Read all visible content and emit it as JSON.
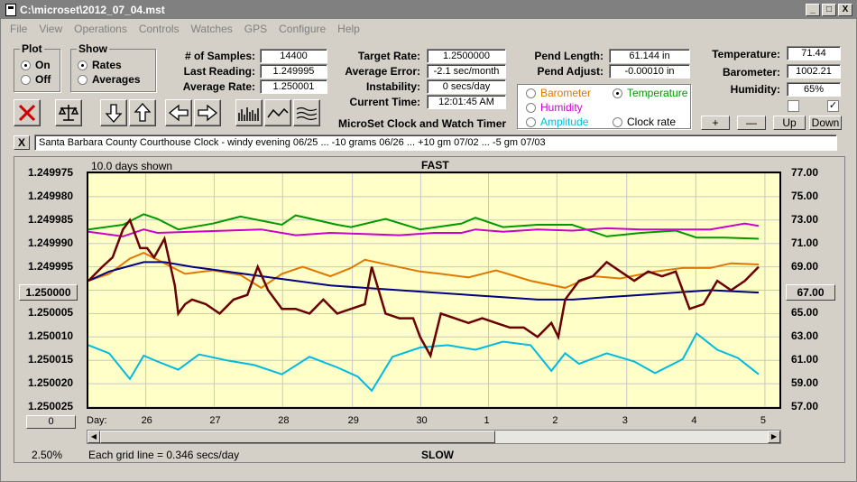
{
  "window": {
    "title": "C:\\microset\\2012_07_04.mst",
    "min": "_",
    "max": "□",
    "close": "X"
  },
  "menu": [
    "File",
    "View",
    "Operations",
    "Controls",
    "Watches",
    "GPS",
    "Configure",
    "Help"
  ],
  "plot_group": {
    "title": "Plot",
    "on": "On",
    "off": "Off",
    "selected": "On"
  },
  "show_group": {
    "title": "Show",
    "rates": "Rates",
    "averages": "Averages",
    "selected": "Rates"
  },
  "stats": {
    "samples_label": "# of Samples:",
    "samples": "14400",
    "last_label": "Last Reading:",
    "last": "1.249995",
    "avg_label": "Average Rate:",
    "avg": "1.250001"
  },
  "rates": {
    "target_label": "Target Rate:",
    "target": "1.2500000",
    "error_label": "Average Error:",
    "error": "-2.1 sec/month",
    "instab_label": "Instability:",
    "instab": "0 secs/day",
    "time_label": "Current Time:",
    "time": "12:01:45 AM"
  },
  "pend": {
    "length_label": "Pend Length:",
    "length": "61.144 in",
    "adjust_label": "Pend Adjust:",
    "adjust": "-0.00010 in"
  },
  "sensors": {
    "temp_label": "Temperature:",
    "temp": "71.44",
    "baro_label": "Barometer:",
    "baro": "1002.21",
    "hum_label": "Humidity:",
    "hum": "65%"
  },
  "overlay": {
    "barometer": "Barometer",
    "temperature": "Temperature",
    "humidity": "Humidity",
    "amplitude": "Amplitude",
    "clockrate": "Clock rate",
    "selected": "Temperature",
    "colors": {
      "barometer": "#e07800",
      "temperature": "#009900",
      "humidity": "#cc00cc",
      "amplitude": "#00bbdd",
      "clockrate": "#000000"
    }
  },
  "app_title": "MicroSet Clock and Watch Timer",
  "scale_buttons": {
    "plus": "+",
    "minus": "—",
    "up": "Up",
    "down": "Down"
  },
  "note_close": "X",
  "note": "Santa Barbara County Courthouse Clock -  windy evening 06/25 ... -10 grams 06/26 ... +10 gm 07/02 ... -5 gm 07/03",
  "chart_header": {
    "days_shown": "10.0 days shown",
    "top": "FAST",
    "bottom": "SLOW"
  },
  "left_axis_button": "1.250000",
  "right_axis_button": "67.00",
  "zero_button": "0",
  "day_label": "Day:",
  "percent": "2.50%",
  "grid_note": "Each grid line = 0.346 secs/day",
  "chart_data": {
    "type": "line",
    "title": "",
    "x_ticks": [
      "26",
      "27",
      "28",
      "29",
      "30",
      "1",
      "2",
      "3",
      "4",
      "5"
    ],
    "x_tick_days": [
      0.83,
      1.82,
      2.81,
      3.82,
      4.81,
      5.79,
      6.78,
      7.79,
      8.79,
      9.79
    ],
    "xlim": [
      0,
      10
    ],
    "y_left_ticks": [
      "1.249975",
      "1.249980",
      "1.249985",
      "1.249990",
      "1.249995",
      "1.250000",
      "1.250005",
      "1.250010",
      "1.250015",
      "1.250020",
      "1.250025"
    ],
    "y_left_lim": [
      1.249975,
      1.250025
    ],
    "y_left_inverted": true,
    "y_right_ticks": [
      "77.00",
      "75.00",
      "73.00",
      "71.00",
      "69.00",
      "67.00",
      "65.00",
      "63.00",
      "61.00",
      "59.00",
      "57.00"
    ],
    "y_right_lim": [
      57,
      77
    ],
    "grid": true,
    "series": [
      {
        "name": "Temperature",
        "color": "#009900",
        "axis": "right",
        "x": [
          0,
          0.5,
          0.8,
          1.0,
          1.3,
          1.8,
          2.2,
          2.8,
          3.0,
          3.6,
          3.8,
          4.3,
          4.8,
          5.4,
          5.6,
          6.0,
          6.5,
          7.0,
          7.5,
          8.0,
          8.5,
          8.8,
          9.2,
          9.7
        ],
        "y": [
          72.2,
          72.6,
          73.5,
          73.1,
          72.2,
          72.7,
          73.3,
          72.6,
          73.4,
          72.6,
          72.4,
          73.1,
          72.2,
          72.7,
          73.2,
          72.4,
          72.6,
          72.6,
          71.6,
          71.9,
          72.1,
          71.5,
          71.5,
          71.4
        ]
      },
      {
        "name": "Humidity",
        "color": "#cc00cc",
        "axis": "right",
        "x": [
          0,
          0.5,
          0.8,
          1.0,
          1.5,
          2.0,
          2.5,
          3.0,
          3.5,
          4.0,
          4.5,
          5.0,
          5.4,
          5.6,
          6.0,
          6.5,
          7.0,
          7.5,
          8.0,
          8.5,
          9.0,
          9.5,
          9.7
        ],
        "y": [
          72.0,
          71.6,
          72.2,
          71.9,
          72.0,
          72.1,
          72.2,
          71.7,
          71.9,
          71.8,
          71.7,
          71.9,
          71.9,
          72.2,
          72.0,
          72.2,
          72.1,
          72.3,
          72.2,
          72.2,
          72.2,
          72.7,
          72.5
        ]
      },
      {
        "name": "Barometer",
        "color": "#e07800",
        "axis": "right",
        "x": [
          0,
          0.3,
          0.6,
          0.8,
          1.0,
          1.4,
          1.8,
          2.2,
          2.5,
          2.8,
          3.1,
          3.5,
          3.8,
          4.0,
          4.4,
          4.8,
          5.1,
          5.5,
          5.9,
          6.4,
          6.9,
          7.3,
          7.7,
          8.2,
          8.6,
          9.0,
          9.3,
          9.7
        ],
        "y": [
          67.8,
          68.4,
          69.7,
          70.2,
          69.6,
          68.4,
          68.7,
          68.3,
          67.2,
          68.4,
          69.0,
          68.2,
          68.9,
          69.6,
          69.1,
          68.6,
          68.4,
          68.1,
          68.7,
          67.8,
          67.2,
          68.2,
          68.0,
          68.6,
          68.9,
          68.9,
          69.3,
          69.2
        ]
      },
      {
        "name": "Amplitude",
        "color": "#00bbdd",
        "axis": "right",
        "x": [
          0,
          0.3,
          0.6,
          0.8,
          1.0,
          1.3,
          1.6,
          2.0,
          2.4,
          2.8,
          3.2,
          3.6,
          3.9,
          4.1,
          4.4,
          4.8,
          5.2,
          5.6,
          6.0,
          6.4,
          6.7,
          6.9,
          7.1,
          7.5,
          7.9,
          8.2,
          8.6,
          8.8,
          9.1,
          9.4,
          9.7
        ],
        "y": [
          62.3,
          61.6,
          59.4,
          61.4,
          60.9,
          60.2,
          61.5,
          61.0,
          60.6,
          59.8,
          61.3,
          60.4,
          59.6,
          58.4,
          61.3,
          62.1,
          62.3,
          61.9,
          62.6,
          62.3,
          60.1,
          61.6,
          60.7,
          61.6,
          60.9,
          59.9,
          61.1,
          63.3,
          61.9,
          61.2,
          59.8
        ]
      },
      {
        "name": "Average",
        "color": "#000080",
        "axis": "left",
        "x": [
          0,
          0.3,
          0.8,
          1.1,
          1.5,
          2.0,
          2.5,
          3.0,
          3.5,
          4.0,
          4.5,
          5.0,
          5.5,
          6.0,
          6.5,
          7.0,
          7.5,
          8.0,
          8.5,
          9.0,
          9.7
        ],
        "y": [
          1.249998,
          1.249996,
          1.249994,
          1.249994,
          1.249995,
          1.249996,
          1.249997,
          1.249998,
          1.249999,
          1.2499995,
          1.25,
          1.2500005,
          1.250001,
          1.2500015,
          1.250002,
          1.250002,
          1.2500015,
          1.250001,
          1.2500005,
          1.25,
          1.2500005
        ]
      },
      {
        "name": "Clock rate",
        "color": "#6b0000",
        "axis": "left",
        "x": [
          0,
          0.2,
          0.35,
          0.5,
          0.6,
          0.7,
          0.75,
          0.85,
          0.95,
          1.1,
          1.25,
          1.3,
          1.4,
          1.5,
          1.7,
          1.9,
          2.1,
          2.3,
          2.45,
          2.6,
          2.8,
          3.0,
          3.2,
          3.4,
          3.6,
          3.8,
          4.0,
          4.1,
          4.3,
          4.5,
          4.7,
          4.8,
          4.95,
          5.1,
          5.3,
          5.5,
          5.7,
          5.9,
          6.1,
          6.3,
          6.5,
          6.7,
          6.8,
          6.9,
          7.1,
          7.3,
          7.5,
          7.7,
          7.9,
          8.1,
          8.3,
          8.5,
          8.7,
          8.9,
          9.1,
          9.3,
          9.5,
          9.7
        ],
        "y": [
          1.249998,
          1.249995,
          1.249993,
          1.249987,
          1.249985,
          1.249989,
          1.249991,
          1.249991,
          1.249993,
          1.249989,
          1.249999,
          1.250005,
          1.250003,
          1.250002,
          1.250003,
          1.250005,
          1.250002,
          1.250001,
          1.249995,
          1.25,
          1.250004,
          1.250004,
          1.250005,
          1.250002,
          1.250005,
          1.250004,
          1.250003,
          1.249995,
          1.250005,
          1.250006,
          1.250006,
          1.25001,
          1.250014,
          1.250005,
          1.250006,
          1.250007,
          1.250006,
          1.250007,
          1.250008,
          1.250008,
          1.25001,
          1.250007,
          1.25001,
          1.250002,
          1.249998,
          1.249997,
          1.249994,
          1.249996,
          1.249998,
          1.249996,
          1.249997,
          1.249996,
          1.250004,
          1.250003,
          1.249998,
          1.25,
          1.249998,
          1.249995
        ]
      }
    ]
  }
}
